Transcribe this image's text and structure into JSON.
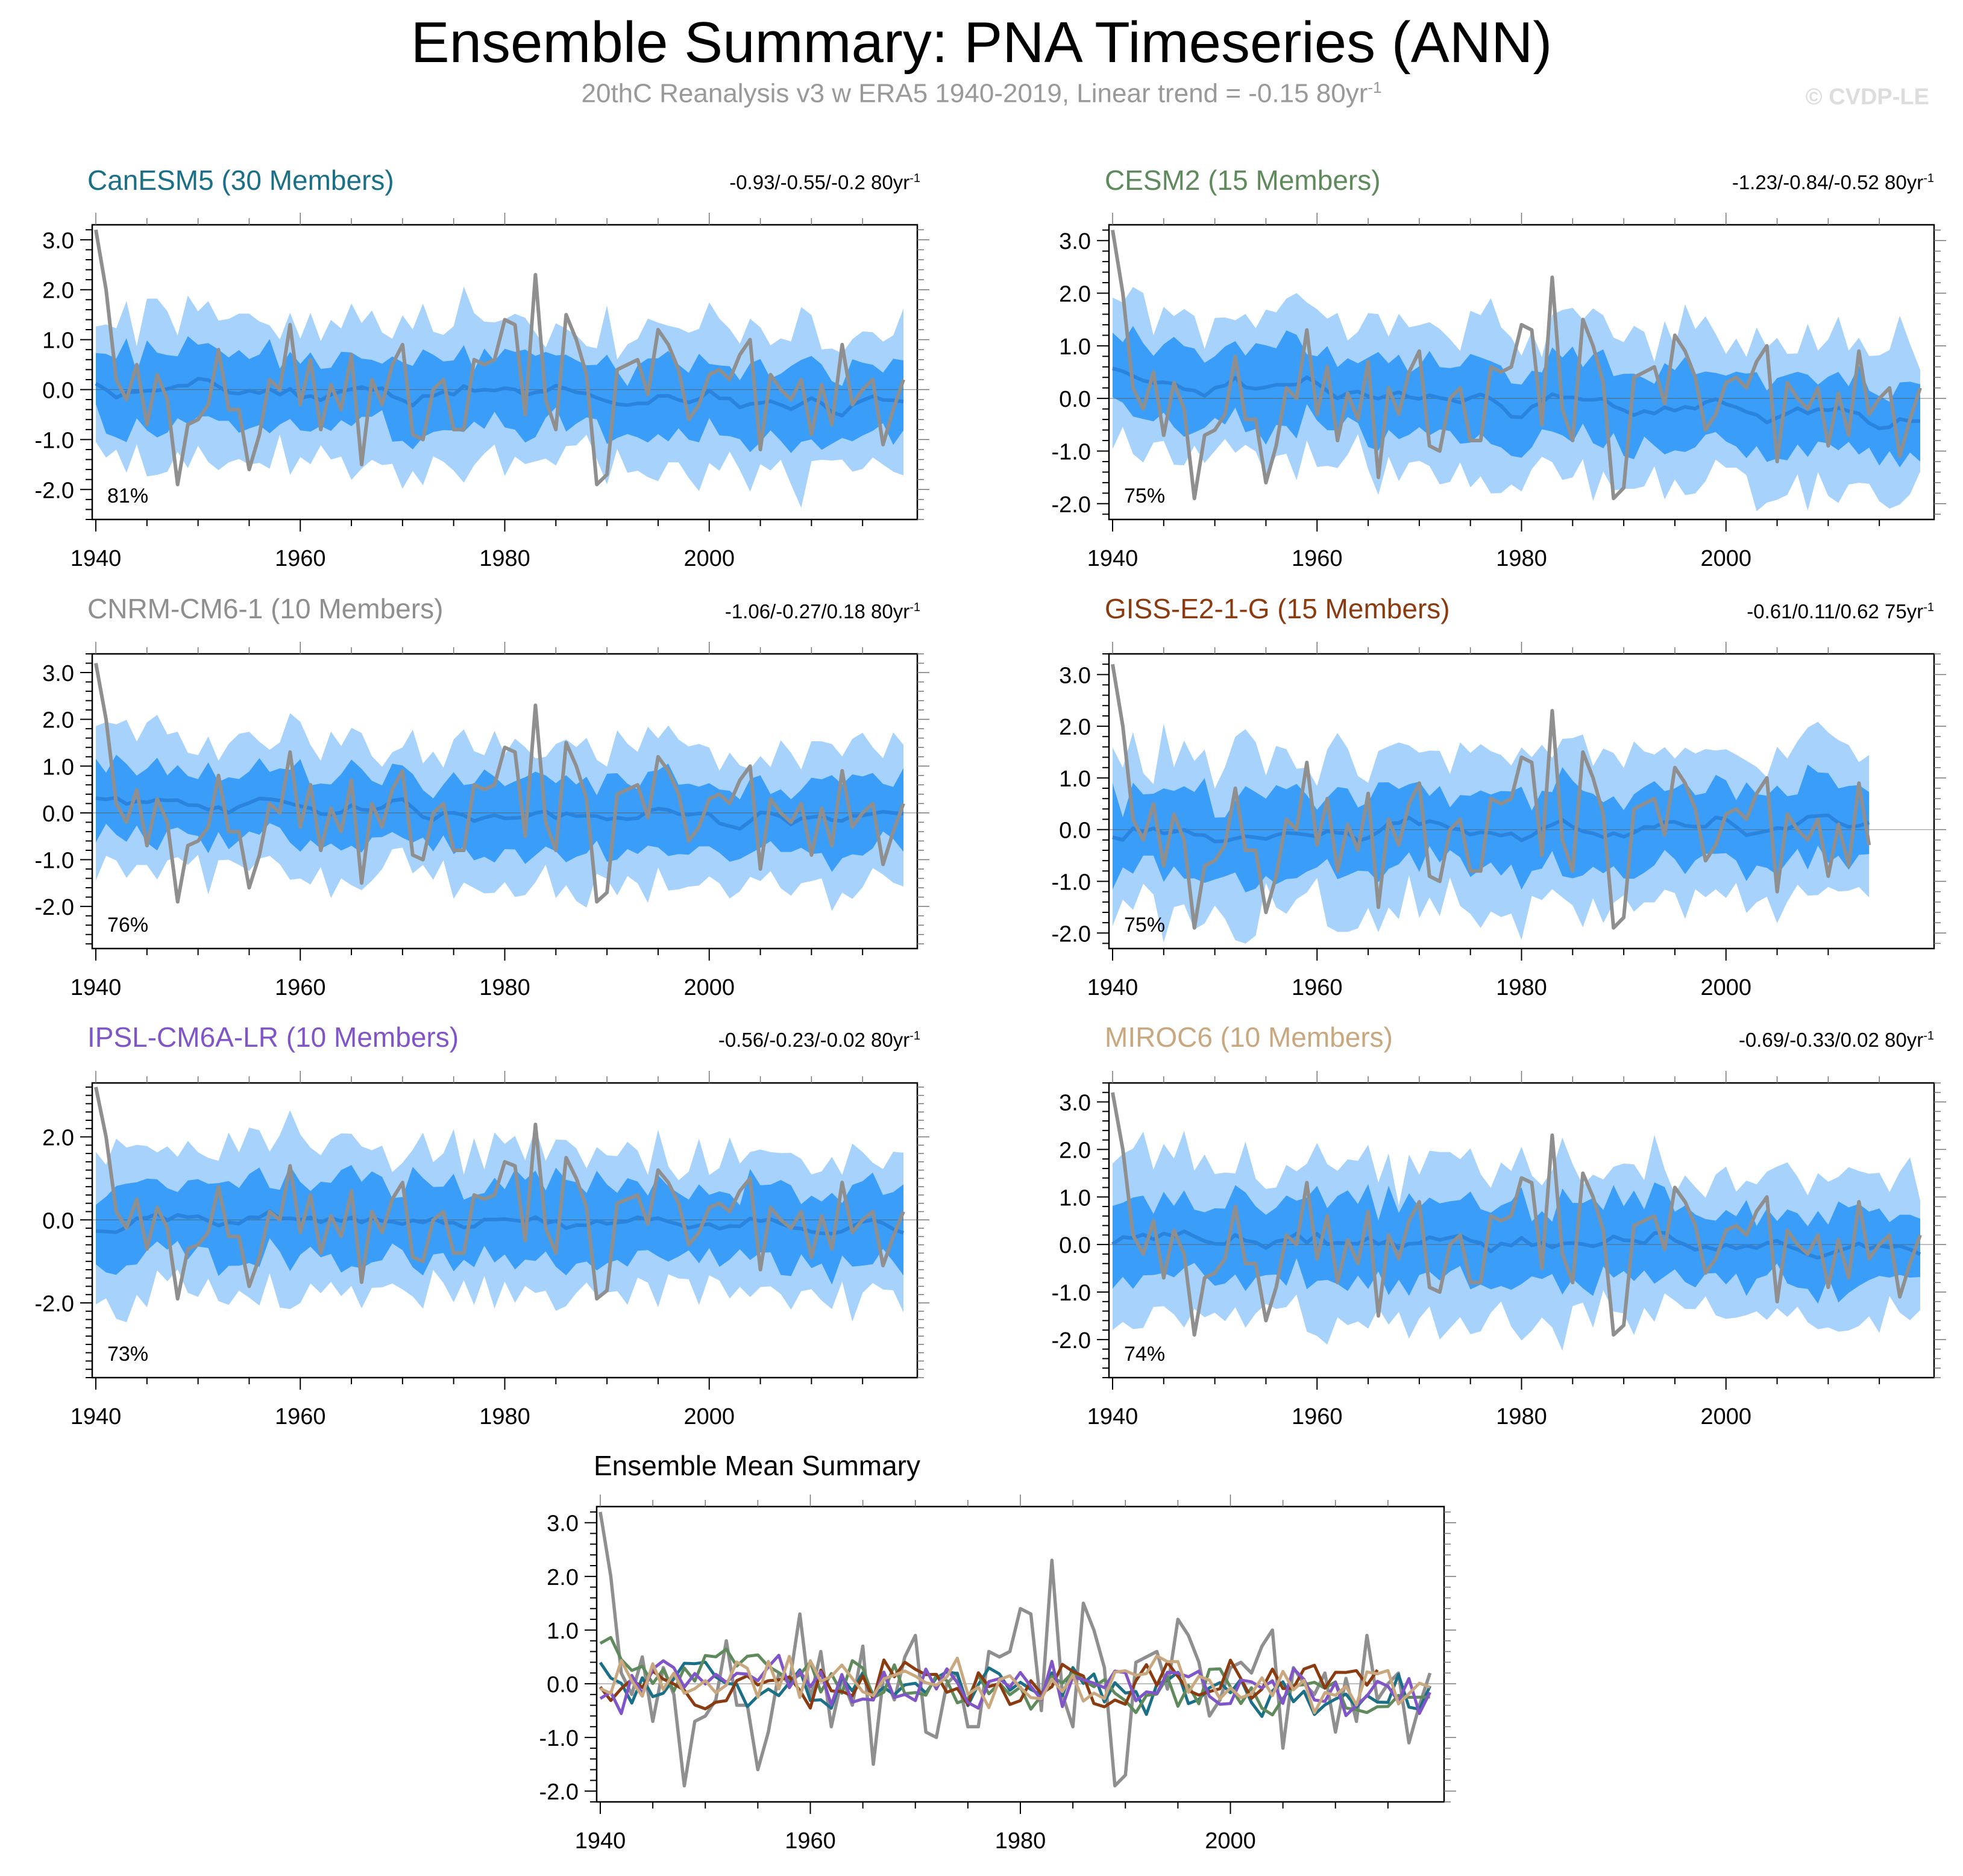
{
  "title": "Ensemble Summary: PNA Timeseries (ANN)",
  "subtitle": {
    "text": "20thC Reanalysis v3 w ERA5 1940-2019, Linear trend = -0.15 80yr",
    "sup": "-1"
  },
  "watermark": "© CVDP-LE",
  "colors": {
    "outer_band": "#a6d2fb",
    "inner_band": "#3a9ef8",
    "ens_mean": "#2a84dd",
    "observed": "#8f8f8f"
  },
  "chart_data": [
    {
      "type": "line",
      "title": "CanESM5 (30 Members)",
      "title_color": "#1b6f87",
      "range_label": "-0.93/-0.55/-0.2 80yr",
      "range_sup": "-1",
      "percent": "81%",
      "years": [
        1940,
        2019
      ],
      "ylim": [
        -2.6,
        3.3
      ],
      "yticks": [
        "3.0",
        "2.0",
        "1.0",
        "0.0",
        "-1.0",
        "-2.0"
      ],
      "ytick_values": [
        3,
        2,
        1,
        0,
        -1,
        -2
      ],
      "xticks": [
        "1940",
        "1960",
        "1980",
        "2000"
      ],
      "seed": 11,
      "mean_offset": 0.05,
      "mean_trend": -0.35,
      "spread": 1.0
    },
    {
      "type": "line",
      "title": "CESM2 (15 Members)",
      "title_color": "#5e8a5c",
      "range_label": "-1.23/-0.84/-0.52 80yr",
      "range_sup": "-1",
      "percent": "75%",
      "years": [
        1940,
        2019
      ],
      "ylim": [
        -2.3,
        3.3
      ],
      "yticks": [
        "3.0",
        "2.0",
        "1.0",
        "0.0",
        "-1.0",
        "-2.0"
      ],
      "ytick_values": [
        3,
        2,
        1,
        0,
        -1,
        -2
      ],
      "xticks": [
        "1940",
        "1960",
        "1980",
        "2000"
      ],
      "seed": 23,
      "mean_offset": 0.3,
      "mean_trend": -0.75,
      "spread": 1.0
    },
    {
      "type": "line",
      "title": "CNRM-CM6-1 (10 Members)",
      "title_color": "#8f8f8f",
      "range_label": "-1.06/-0.27/0.18 80yr",
      "range_sup": "-1",
      "percent": "76%",
      "years": [
        1940,
        2019
      ],
      "ylim": [
        -2.9,
        3.4
      ],
      "yticks": [
        "3.0",
        "2.0",
        "1.0",
        "0.0",
        "-1.0",
        "-2.0"
      ],
      "ytick_values": [
        3,
        2,
        1,
        0,
        -1,
        -2
      ],
      "xticks": [
        "1940",
        "1960",
        "1980",
        "2000"
      ],
      "seed": 37,
      "mean_offset": 0.1,
      "mean_trend": -0.25,
      "spread": 1.05
    },
    {
      "type": "line",
      "title": "GISS-E2-1-G (15 Members)",
      "title_color": "#8a3b0f",
      "range_label": "-0.61/0.11/0.62 75yr",
      "range_sup": "-1",
      "percent": "75%",
      "years": [
        1940,
        2014
      ],
      "ylim": [
        -2.3,
        3.4
      ],
      "yticks": [
        "3.0",
        "2.0",
        "1.0",
        "0.0",
        "-1.0",
        "-2.0"
      ],
      "ytick_values": [
        3,
        2,
        1,
        0,
        -1,
        -2
      ],
      "xticks": [
        "1940",
        "1960",
        "1980",
        "2000"
      ],
      "seed": 53,
      "mean_offset": -0.05,
      "mean_trend": 0.1,
      "spread": 1.05
    },
    {
      "type": "line",
      "title": "IPSL-CM6A-LR (10 Members)",
      "title_color": "#8055c8",
      "range_label": "-0.56/-0.23/-0.02 80yr",
      "range_sup": "-1",
      "percent": "73%",
      "years": [
        1940,
        2019
      ],
      "ylim": [
        -3.8,
        3.3
      ],
      "yticks": [
        "2.0",
        "0.0",
        "-2.0"
      ],
      "ytick_values": [
        2,
        0,
        -2
      ],
      "xticks": [
        "1940",
        "1960",
        "1980",
        "2000"
      ],
      "seed": 71,
      "mean_offset": 0.05,
      "mean_trend": -0.2,
      "spread": 1.25
    },
    {
      "type": "line",
      "title": "MIROC6 (10 Members)",
      "title_color": "#c9a880",
      "range_label": "-0.69/-0.33/0.02 80yr",
      "range_sup": "-1",
      "percent": "74%",
      "years": [
        1940,
        2019
      ],
      "ylim": [
        -2.8,
        3.4
      ],
      "yticks": [
        "3.0",
        "2.0",
        "1.0",
        "0.0",
        "-1.0",
        "-2.0"
      ],
      "ytick_values": [
        3,
        2,
        1,
        0,
        -1,
        -2
      ],
      "xticks": [
        "1940",
        "1960",
        "1980",
        "2000"
      ],
      "seed": 89,
      "mean_offset": 0.2,
      "mean_trend": -0.35,
      "spread": 1.1
    }
  ],
  "summary_chart": {
    "type": "line",
    "title": "Ensemble Mean Summary",
    "years": [
      1940,
      2019
    ],
    "ylim": [
      -2.2,
      3.3
    ],
    "yticks": [
      "3.0",
      "2.0",
      "1.0",
      "0.0",
      "-1.0",
      "-2.0"
    ],
    "ytick_values": [
      3,
      2,
      1,
      0,
      -1,
      -2
    ],
    "xticks": [
      "1940",
      "1960",
      "1980",
      "2000"
    ],
    "series": [
      {
        "name": "CanESM5",
        "color": "#1b6f87"
      },
      {
        "name": "CESM2",
        "color": "#5e8a5c"
      },
      {
        "name": "GISS-E2-1-G",
        "color": "#8a3b0f"
      },
      {
        "name": "IPSL-CM6A-LR",
        "color": "#8055c8"
      },
      {
        "name": "MIROC6",
        "color": "#c9a880"
      }
    ]
  },
  "observed": {
    "name": "20thC Reanalysis v3 w ERA5",
    "years": [
      1940,
      2019
    ],
    "values": [
      3.2,
      2.0,
      0.2,
      -0.2,
      0.5,
      -0.7,
      0.3,
      -0.2,
      -1.9,
      -0.7,
      -0.6,
      -0.3,
      0.8,
      -0.4,
      -0.4,
      -1.6,
      -0.9,
      0.2,
      0.0,
      1.3,
      -0.3,
      0.6,
      -0.8,
      0.1,
      -0.4,
      0.7,
      -1.5,
      0.2,
      -0.3,
      0.5,
      0.9,
      -0.9,
      -1.0,
      0.0,
      0.2,
      -0.8,
      -0.8,
      0.6,
      0.5,
      0.6,
      1.4,
      1.3,
      -0.5,
      2.3,
      -0.2,
      -0.8,
      1.5,
      1.0,
      0.3,
      -1.9,
      -1.7,
      0.4,
      0.5,
      0.6,
      -0.1,
      1.2,
      0.9,
      0.4,
      -0.6,
      -0.3,
      0.3,
      0.4,
      0.2,
      0.7,
      1.0,
      -1.2,
      0.3,
      0.0,
      -0.2,
      0.2,
      -0.9,
      0.1,
      -0.7,
      0.9,
      -0.3,
      0.0,
      0.2,
      -1.1,
      -0.4,
      0.2
    ]
  }
}
